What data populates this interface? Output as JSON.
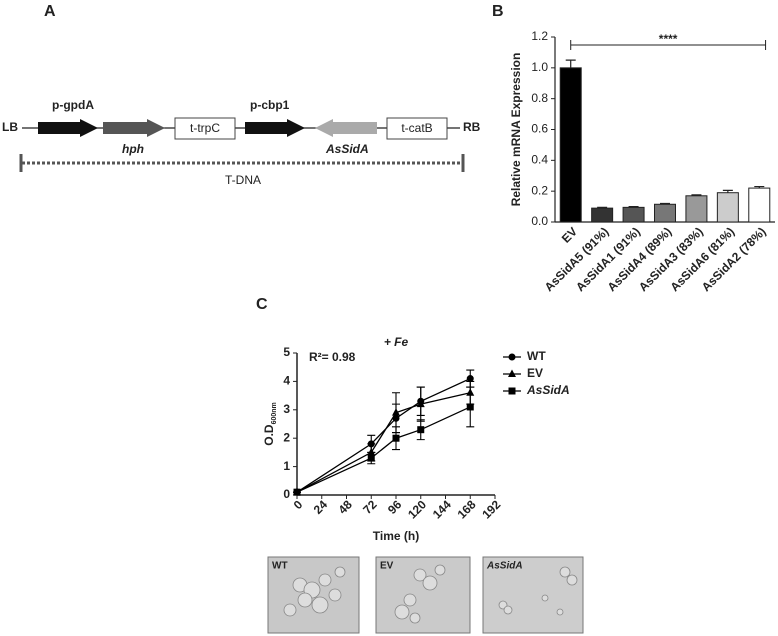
{
  "panel_labels": [
    "A",
    "B",
    "C"
  ],
  "diagram": {
    "lb": "LB",
    "rb": "RB",
    "p_gpda": "p-gpdA",
    "hph": "hph",
    "t_trpc": "t-trpC",
    "p_cbp1": "p-cbp1",
    "assida": "AsSidA",
    "t_catb": "t-catB",
    "tdna": "T-DNA"
  },
  "micrographs": [
    "WT",
    "EV",
    "AsSidA"
  ],
  "chart_data": [
    {
      "type": "bar",
      "ylabel": "Relative mRNA Expression",
      "categories": [
        "EV",
        "AsSidA5 (91%)",
        "AsSidA1 (91%)",
        "AsSidA4 (89%)",
        "AsSidA3 (83%)",
        "AsSidA6 (81%)",
        "AsSidA2 (78%)"
      ],
      "values": [
        1.0,
        0.09,
        0.095,
        0.115,
        0.17,
        0.19,
        0.22
      ],
      "errors": [
        0.05,
        0.005,
        0.005,
        0.005,
        0.006,
        0.015,
        0.01
      ],
      "colors": [
        "#000000",
        "#333333",
        "#555555",
        "#777777",
        "#999999",
        "#cccccc",
        "#ffffff"
      ],
      "ylim": [
        0,
        1.2
      ],
      "yticks": [
        {
          "value": 0,
          "label": "0.0"
        },
        0.2,
        0.4,
        0.6,
        0.8,
        {
          "value": 1,
          "label": "1.0"
        },
        1.2
      ],
      "annotation": "****"
    },
    {
      "type": "line",
      "title": "+ Fe",
      "annotation": "R²= 0.98",
      "xlabel": "Time (h)",
      "ylabel": "O.D",
      "ylabel_sub": "600nm",
      "x": [
        0,
        72,
        96,
        120,
        168
      ],
      "series": [
        {
          "name": "WT",
          "marker": "circle",
          "color": "#000000",
          "values": [
            0.1,
            1.8,
            2.7,
            3.3,
            4.1
          ],
          "errors": [
            0,
            0.3,
            0.5,
            0.5,
            0.3
          ]
        },
        {
          "name": "EV",
          "marker": "triangle",
          "color": "#000000",
          "values": [
            0.1,
            1.5,
            2.9,
            3.2,
            3.6
          ],
          "errors": [
            0,
            0.3,
            0.7,
            0.6,
            0.4
          ]
        },
        {
          "name": "AsSidA",
          "marker": "square",
          "color": "#000000",
          "values": [
            0.1,
            1.3,
            2.0,
            2.3,
            3.1
          ],
          "errors": [
            0,
            0.2,
            0.4,
            0.35,
            0.7
          ]
        }
      ],
      "xlim": [
        0,
        192
      ],
      "xticks": [
        0,
        24,
        48,
        72,
        96,
        120,
        144,
        168,
        192
      ],
      "ylim": [
        0,
        5
      ],
      "yticks": [
        0,
        1,
        2,
        3,
        4,
        5
      ],
      "legend": "right"
    }
  ]
}
